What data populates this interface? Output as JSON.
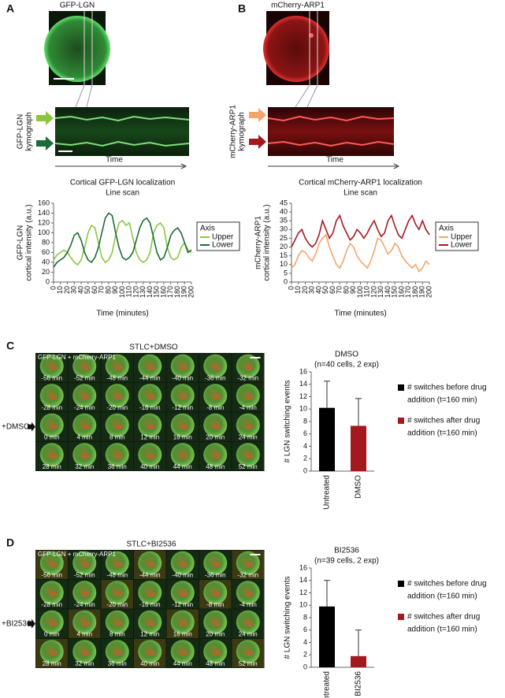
{
  "figure": {
    "panel_a": {
      "letter": "A",
      "image_title": "GFP-LGN",
      "kymograph_label": [
        "GFP-LGN",
        "kymograph"
      ],
      "time_label": "Time"
    },
    "panel_b": {
      "letter": "B",
      "image_title": "mCherry-ARP1",
      "kymograph_label": [
        "mCherry-ARP1",
        "kymograph"
      ],
      "time_label": "Time"
    },
    "panel_c": {
      "letter": "C",
      "title": "STLC+DMSO",
      "overlay": "GFP-LGN + mCherry-ARP1",
      "treatment": "+DMSO",
      "tiles": [
        "-56 min",
        "-52 min",
        "-48 min",
        "-44 min",
        "-40 min",
        "-36 min",
        "-32 min",
        "-28 min",
        "-24 min",
        "-20 min",
        "-16 min",
        "-12 min",
        "-8 min",
        "-4 min",
        "0 min",
        "4 min",
        "8 min",
        "12 min",
        "16 min",
        "20 min",
        "24 min",
        "28 min",
        "32 min",
        "36 min",
        "40 min",
        "44 min",
        "48 min",
        "52 min"
      ]
    },
    "panel_d": {
      "letter": "D",
      "title": "STLC+BI2536",
      "overlay": "GFP-LGN + mCherry-ARP1",
      "treatment": "+BI2536",
      "tiles": [
        "-56 min",
        "-52 min",
        "-48 min",
        "-44 min",
        "-40 min",
        "-36 min",
        "-32 min",
        "-28 min",
        "-24 min",
        "-20 min",
        "-16 min",
        "-12 min",
        "-8 min",
        "-4 min",
        "0 min",
        "4 min",
        "8 min",
        "12 min",
        "16 min",
        "20 min",
        "24 min",
        "28 min",
        "32 min",
        "36 min",
        "40 min",
        "44 min",
        "48 min",
        "52 min"
      ]
    }
  },
  "chart_data": [
    {
      "type": "line",
      "title": "Cortical GFP-LGN localization",
      "subtitle": "Line scan",
      "ylabel": [
        "GFP-LGN",
        "cortical intensity (a.u.)"
      ],
      "xlabel": "Time (minutes)",
      "legend_title": "Axis",
      "x": [
        0,
        5,
        10,
        15,
        20,
        25,
        30,
        35,
        40,
        45,
        50,
        55,
        60,
        65,
        70,
        75,
        80,
        85,
        90,
        95,
        100,
        105,
        110,
        115,
        120,
        125,
        130,
        135,
        140,
        145,
        150,
        155,
        160,
        165,
        170,
        175,
        180,
        185,
        190,
        195,
        200
      ],
      "series": [
        {
          "name": "Upper",
          "color": "#8dc63f",
          "values": [
            45,
            55,
            60,
            65,
            60,
            50,
            40,
            35,
            45,
            70,
            100,
            115,
            110,
            80,
            50,
            40,
            45,
            60,
            95,
            120,
            125,
            115,
            120,
            90,
            60,
            45,
            40,
            45,
            60,
            100,
            115,
            120,
            110,
            70,
            50,
            45,
            50,
            70,
            80,
            65,
            60
          ]
        },
        {
          "name": "Lower",
          "color": "#1b6b36",
          "values": [
            30,
            40,
            45,
            50,
            60,
            75,
            95,
            100,
            85,
            60,
            45,
            40,
            50,
            70,
            100,
            130,
            140,
            135,
            100,
            70,
            50,
            45,
            50,
            60,
            85,
            110,
            125,
            130,
            120,
            90,
            60,
            45,
            50,
            70,
            95,
            105,
            110,
            100,
            80,
            60,
            65
          ]
        }
      ],
      "xlim": [
        0,
        200
      ],
      "xticks": [
        0,
        10,
        20,
        30,
        40,
        50,
        60,
        70,
        80,
        90,
        100,
        110,
        120,
        130,
        140,
        150,
        160,
        170,
        180,
        190,
        200
      ],
      "ylim": [
        0,
        160
      ],
      "yticks": [
        0,
        20,
        40,
        60,
        80,
        100,
        120,
        140,
        160
      ]
    },
    {
      "type": "line",
      "title": "Cortical mCherry-ARP1 localization",
      "subtitle": "Line scan",
      "ylabel": [
        "mCherry-ARP1",
        "cortical intensity (a.u.)"
      ],
      "xlabel": "Time (minutes)",
      "legend_title": "Axis",
      "x": [
        0,
        5,
        10,
        15,
        20,
        25,
        30,
        35,
        40,
        45,
        50,
        55,
        60,
        65,
        70,
        75,
        80,
        85,
        90,
        95,
        100,
        105,
        110,
        115,
        120,
        125,
        130,
        135,
        140,
        145,
        150,
        155,
        160,
        165,
        170,
        175,
        180,
        185,
        190,
        195,
        200
      ],
      "series": [
        {
          "name": "Upper",
          "color": "#f5a46a",
          "values": [
            8,
            10,
            15,
            18,
            17,
            14,
            12,
            16,
            22,
            25,
            27,
            20,
            15,
            10,
            8,
            12,
            18,
            22,
            20,
            15,
            12,
            10,
            8,
            12,
            18,
            25,
            24,
            20,
            16,
            18,
            22,
            20,
            15,
            12,
            10,
            8,
            10,
            6,
            8,
            12,
            10
          ]
        },
        {
          "name": "Lower",
          "color": "#a3191e",
          "values": [
            20,
            24,
            28,
            30,
            25,
            22,
            20,
            22,
            27,
            35,
            30,
            25,
            28,
            35,
            38,
            32,
            28,
            24,
            26,
            30,
            28,
            25,
            28,
            32,
            35,
            30,
            26,
            28,
            35,
            38,
            32,
            27,
            25,
            30,
            35,
            38,
            33,
            30,
            35,
            30,
            27
          ]
        }
      ],
      "xlim": [
        0,
        200
      ],
      "xticks": [
        0,
        10,
        20,
        30,
        40,
        50,
        60,
        70,
        80,
        90,
        100,
        110,
        120,
        130,
        140,
        150,
        160,
        170,
        180,
        190,
        200
      ],
      "ylim": [
        0,
        45
      ],
      "yticks": [
        0,
        5,
        10,
        15,
        20,
        25,
        30,
        35,
        40,
        45
      ]
    },
    {
      "type": "bar",
      "title": "DMSO",
      "subtitle": "(n=40 cells, 2 exp)",
      "ylabel": "# LGN switching events",
      "categories": [
        "Untreated",
        "DMSO"
      ],
      "values": [
        10.2,
        7.3
      ],
      "errors": [
        4.3,
        4.4
      ],
      "colors": [
        "#000000",
        "#a3191e"
      ],
      "legend": [
        [
          "# switches before drug",
          "addition (t=160 min)"
        ],
        [
          "# switches after drug",
          "addition (t=160 min)"
        ]
      ],
      "ylim": [
        0,
        16
      ],
      "yticks": [
        0,
        2,
        4,
        6,
        8,
        10,
        12,
        14,
        16
      ]
    },
    {
      "type": "bar",
      "title": "BI2536",
      "subtitle": "(n=39 cells, 2 exp)",
      "ylabel": "# LGN switching events",
      "categories": [
        "Untreated",
        "BI2536"
      ],
      "values": [
        9.8,
        1.8
      ],
      "errors": [
        4.2,
        4.2
      ],
      "colors": [
        "#000000",
        "#a3191e"
      ],
      "legend": [
        [
          "# switches before drug",
          "addition (t=160 min)"
        ],
        [
          "# switches after drug",
          "addition (t=160 min)"
        ]
      ],
      "ylim": [
        0,
        16
      ],
      "yticks": [
        0,
        2,
        4,
        6,
        8,
        10,
        12,
        14,
        16
      ]
    }
  ]
}
